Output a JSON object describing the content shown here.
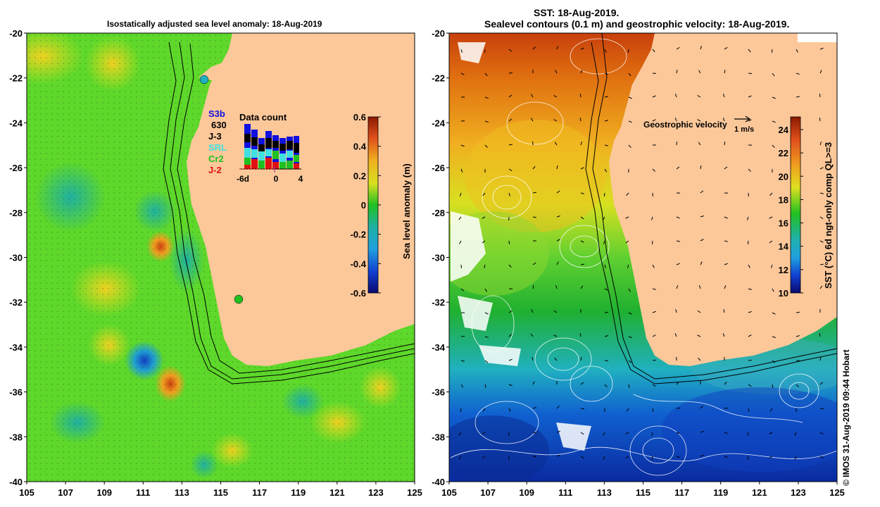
{
  "left_map": {
    "title": "Isostatically adjusted sea level anomaly: 18-Aug-2019",
    "lat_ticks": [
      "-20",
      "-22",
      "-24",
      "-26",
      "-28",
      "-30",
      "-32",
      "-34",
      "-36",
      "-38",
      "-40"
    ],
    "lon_ticks": [
      "105",
      "107",
      "109",
      "111",
      "113",
      "115",
      "117",
      "119",
      "121",
      "123",
      "125"
    ],
    "colorbar": {
      "label": "Sea level anomaly (m)",
      "ticks": [
        "0.6",
        "0.4",
        "0.2",
        "0",
        "-0.2",
        "-0.4",
        "-0.6"
      ]
    },
    "legend": {
      "satellites": [
        {
          "name": "S3b",
          "color": "#1010e0"
        },
        {
          "name": "630",
          "color": "#000000"
        },
        {
          "name": "J-3",
          "color": "#000000"
        },
        {
          "name": "SRL",
          "color": "#40e0e0"
        },
        {
          "name": "Cr2",
          "color": "#20c020"
        },
        {
          "name": "J-2",
          "color": "#e01010"
        }
      ],
      "data_count_title": "Data count",
      "axis_ticks": [
        "-6d",
        "0",
        "4"
      ]
    }
  },
  "right_map": {
    "title_line1": "SST: 18-Aug-2019.",
    "title_line2": "Sealevel contours (0.1 m) and geostrophic velocity: 18-Aug-2019.",
    "lat_ticks": [
      "-20",
      "-22",
      "-24",
      "-26",
      "-28",
      "-30",
      "-32",
      "-34",
      "-36",
      "-38",
      "-40"
    ],
    "lon_ticks": [
      "105",
      "107",
      "109",
      "111",
      "113",
      "115",
      "117",
      "119",
      "121",
      "123",
      "125"
    ],
    "colorbar": {
      "label": "SST (°C) 6d ngt-only comp QL>=3",
      "ticks": [
        "24",
        "22",
        "20",
        "18",
        "16",
        "14",
        "12",
        "10"
      ]
    },
    "velocity_legend": {
      "label": "Geostrophic velocity",
      "scale": "1 m/s"
    }
  },
  "credit": "© IMOS 31-Aug-2019 09:44 Hobart",
  "colors": {
    "land": "#fcc89a",
    "background": "#ffffff"
  }
}
